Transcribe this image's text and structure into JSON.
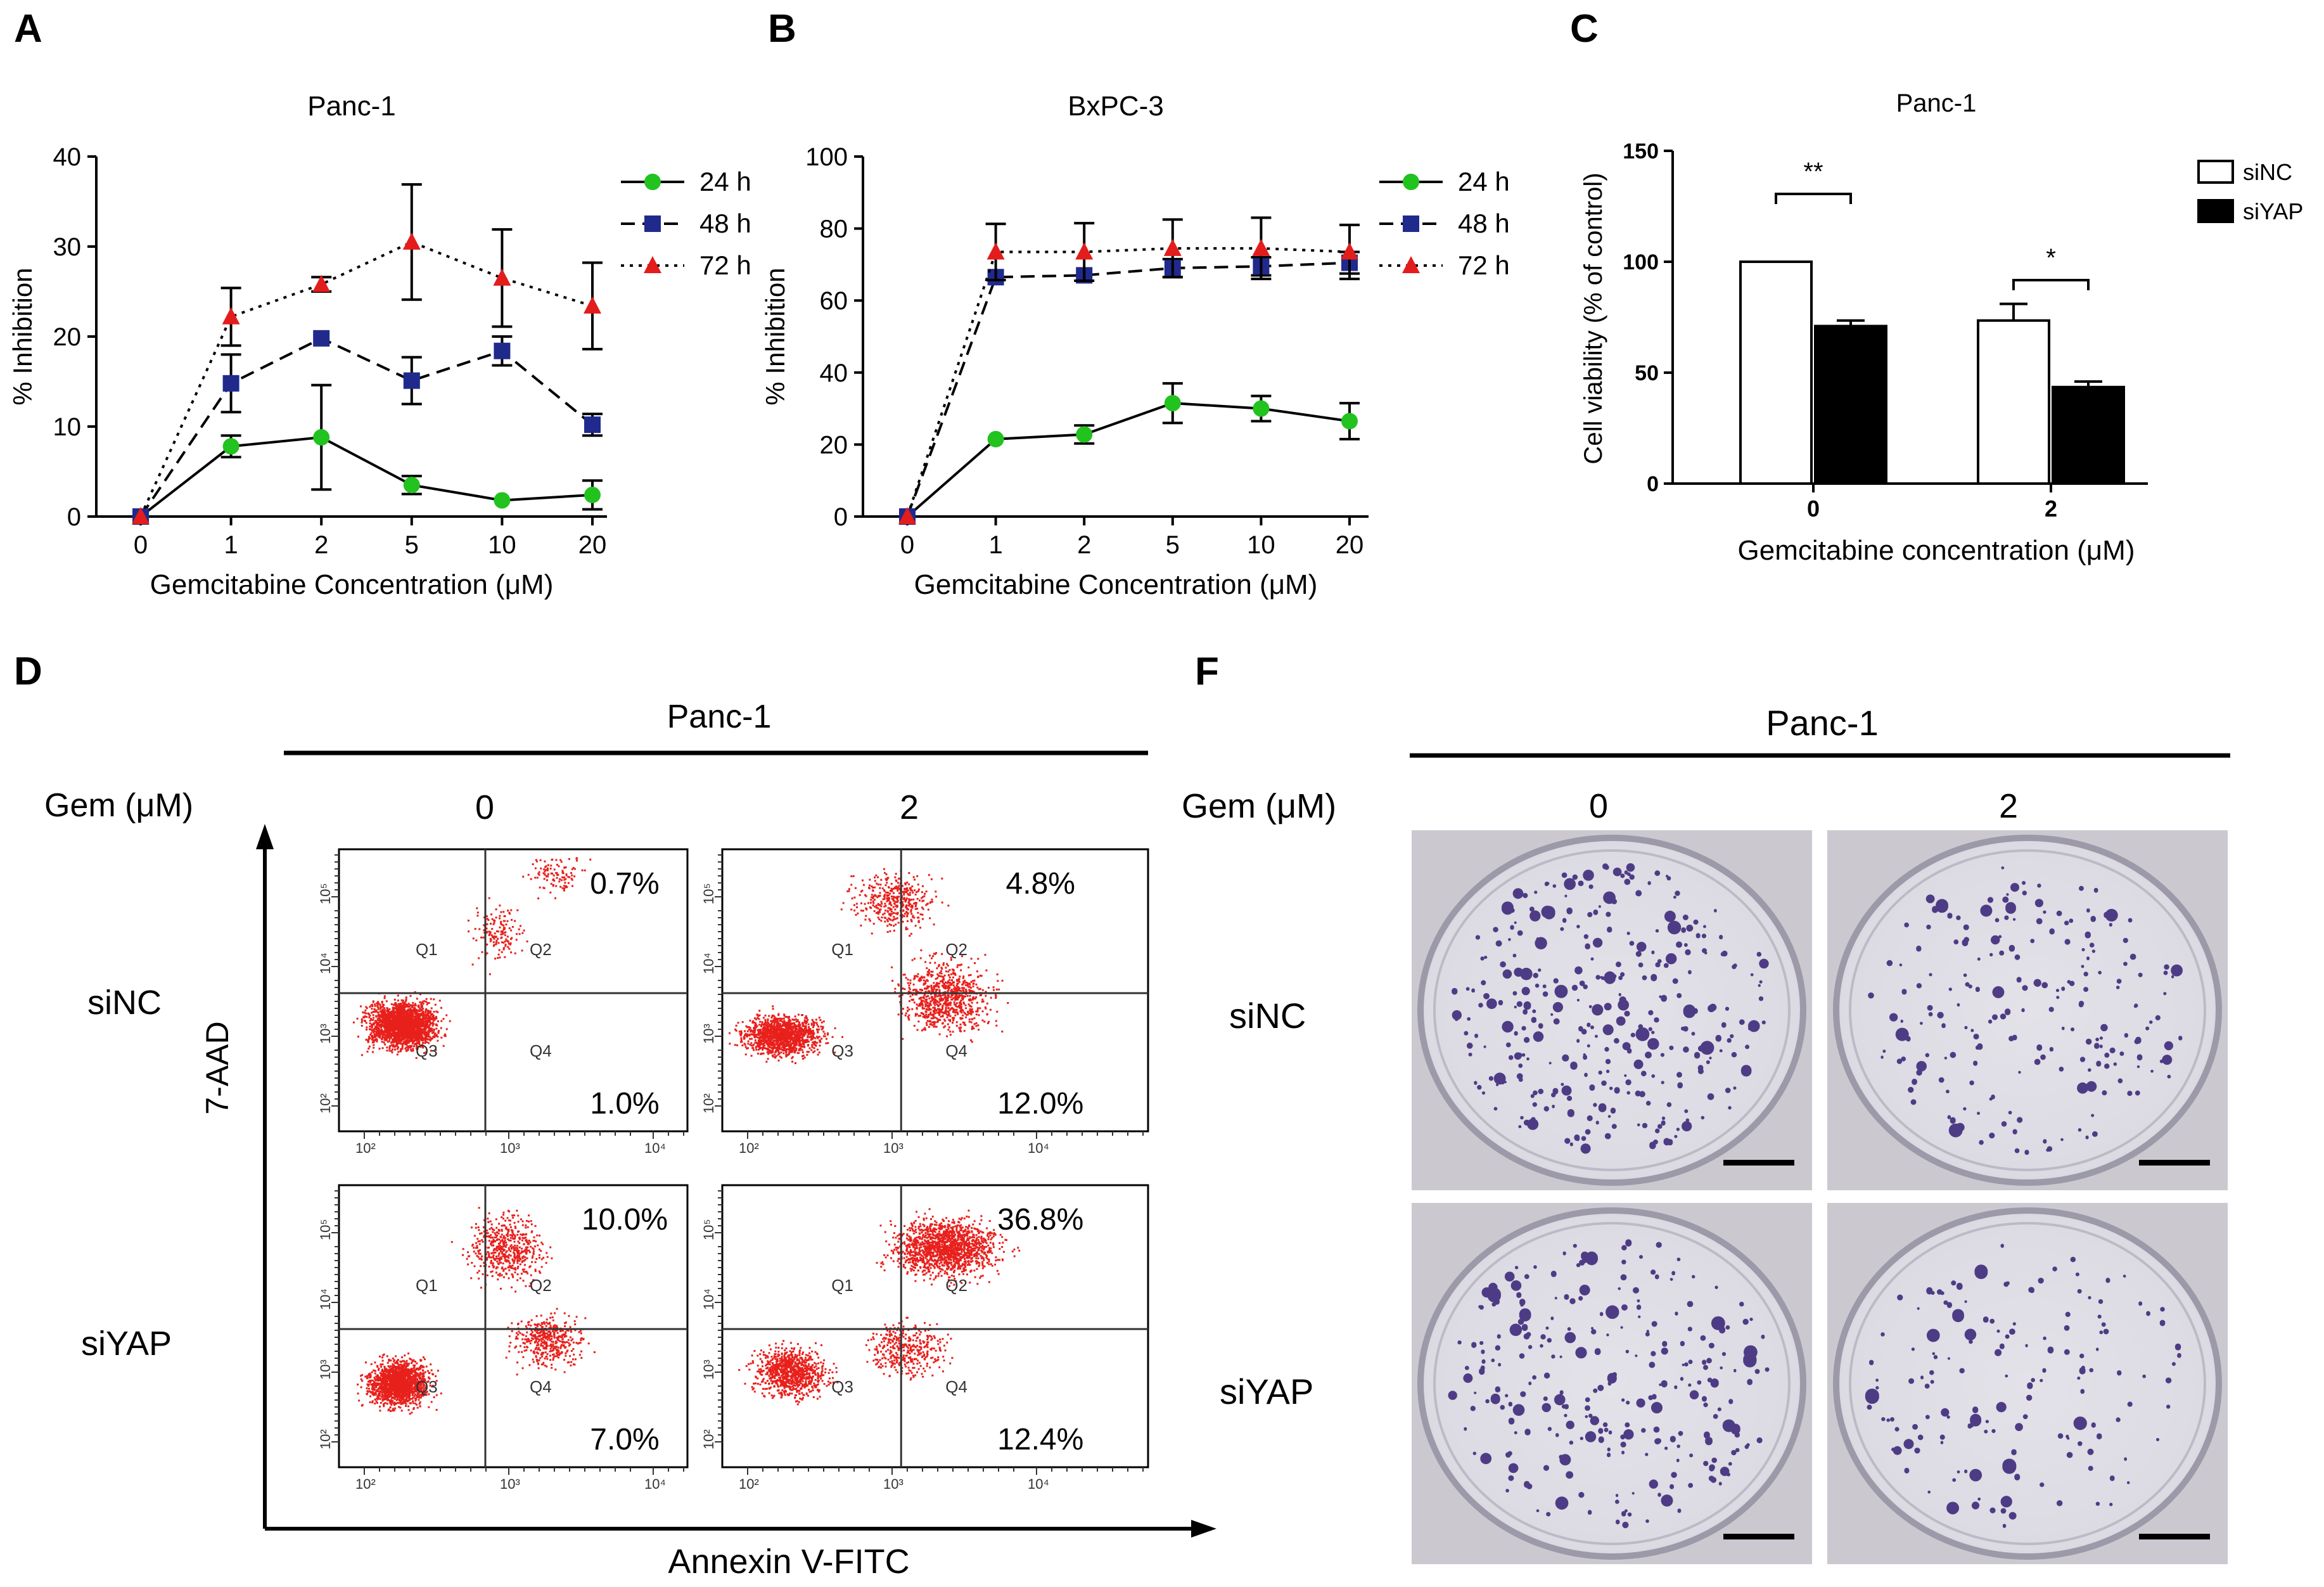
{
  "panel_letters": {
    "a": "A",
    "b": "B",
    "c": "C",
    "d": "D",
    "f": "F"
  },
  "chart_data": [
    {
      "id": "A",
      "type": "line",
      "title": "Panc-1",
      "xlabel": "Gemcitabine Concentration (μM)",
      "ylabel": "% Inhibition",
      "categories": [
        "0",
        "1",
        "2",
        "5",
        "10",
        "20"
      ],
      "ylim": [
        0,
        40
      ],
      "yticks": [
        "0",
        "10",
        "20",
        "30",
        "40"
      ],
      "legend_position": "top-right",
      "series": [
        {
          "name": "24 h",
          "style": "solid",
          "marker": "circle",
          "color": "#22c21f",
          "values": [
            0,
            7.8,
            8.8,
            3.5,
            1.8,
            2.4
          ],
          "errors": [
            0,
            1.2,
            5.8,
            1.0,
            0,
            1.6
          ]
        },
        {
          "name": "48 h",
          "style": "dashed",
          "marker": "square",
          "color": "#1f2a8c",
          "values": [
            0,
            14.8,
            19.8,
            15.1,
            18.4,
            10.2
          ],
          "errors": [
            0,
            3.2,
            0,
            2.6,
            1.6,
            1.2
          ]
        },
        {
          "name": "72 h",
          "style": "dotted",
          "marker": "triangle",
          "color": "#e31c1c",
          "values": [
            0,
            22.2,
            25.8,
            30.5,
            26.5,
            23.4
          ],
          "errors": [
            0,
            3.2,
            0.8,
            6.4,
            5.4,
            4.8
          ]
        }
      ]
    },
    {
      "id": "B",
      "type": "line",
      "title": "BxPC-3",
      "xlabel": "Gemcitabine Concentration (μM)",
      "ylabel": "% Inhibition",
      "categories": [
        "0",
        "1",
        "2",
        "5",
        "10",
        "20"
      ],
      "ylim": [
        0,
        100
      ],
      "yticks": [
        "0",
        "20",
        "40",
        "60",
        "80",
        "100"
      ],
      "legend_position": "top-right",
      "series": [
        {
          "name": "24 h",
          "style": "solid",
          "marker": "circle",
          "color": "#22c21f",
          "values": [
            0,
            21.5,
            22.8,
            31.5,
            30.0,
            26.5
          ],
          "errors": [
            0,
            0,
            2.5,
            5.5,
            3.5,
            5.0
          ]
        },
        {
          "name": "48 h",
          "style": "dashed",
          "marker": "square",
          "color": "#1f2a8c",
          "values": [
            0,
            66.5,
            67.0,
            69.0,
            69.5,
            70.5
          ],
          "errors": [
            0,
            0,
            0,
            2.5,
            2.5,
            3.0
          ]
        },
        {
          "name": "72 h",
          "style": "dotted",
          "marker": "triangle",
          "color": "#e31c1c",
          "values": [
            0,
            73.5,
            73.5,
            74.5,
            74.5,
            73.5
          ],
          "errors": [
            0,
            7.8,
            8.0,
            8.0,
            8.5,
            7.5
          ]
        }
      ]
    },
    {
      "id": "C",
      "type": "bar",
      "title": "Panc-1",
      "xlabel": "Gemcitabine concentration (μM)",
      "ylabel": "Cell viability (% of control)",
      "categories": [
        "0",
        "2"
      ],
      "ylim": [
        0,
        150
      ],
      "yticks": [
        "0",
        "50",
        "100",
        "150"
      ],
      "legend_position": "top-right",
      "series": [
        {
          "name": "siNC",
          "fill": "#ffffff",
          "values": [
            100,
            73.5
          ],
          "errors": [
            0,
            7.5
          ]
        },
        {
          "name": "siYAP",
          "fill": "#000000",
          "values": [
            71,
            43.5
          ],
          "errors": [
            2.5,
            2.5
          ]
        }
      ],
      "significance": [
        "**",
        "*"
      ]
    }
  ],
  "panel_d": {
    "header": "Panc-1",
    "gem_label": "Gem (μM)",
    "columns": [
      "0",
      "2"
    ],
    "rows": [
      "siNC",
      "siYAP"
    ],
    "y_axis_label": "7-AAD",
    "x_axis_label": "Annexin V-FITC",
    "quadrant_labels": [
      "Q1",
      "Q2",
      "Q3",
      "Q4"
    ],
    "tick_labels": [
      "10²",
      "10³",
      "10⁴",
      "10⁵"
    ],
    "plots": [
      {
        "row": "siNC",
        "col": "0",
        "upper_right": "0.7%",
        "lower_right": "1.0%"
      },
      {
        "row": "siNC",
        "col": "2",
        "upper_right": "4.8%",
        "lower_right": "12.0%"
      },
      {
        "row": "siYAP",
        "col": "0",
        "upper_right": "10.0%",
        "lower_right": "7.0%"
      },
      {
        "row": "siYAP",
        "col": "2",
        "upper_right": "36.8%",
        "lower_right": "12.4%"
      }
    ]
  },
  "panel_f": {
    "header": "Panc-1",
    "gem_label": "Gem (μM)",
    "columns": [
      "0",
      "2"
    ],
    "rows": [
      "siNC",
      "siYAP"
    ]
  },
  "colors": {
    "dot_red": "#e8201c",
    "colony": "#3d2a7a",
    "dish_bg": "#d8d6de"
  }
}
